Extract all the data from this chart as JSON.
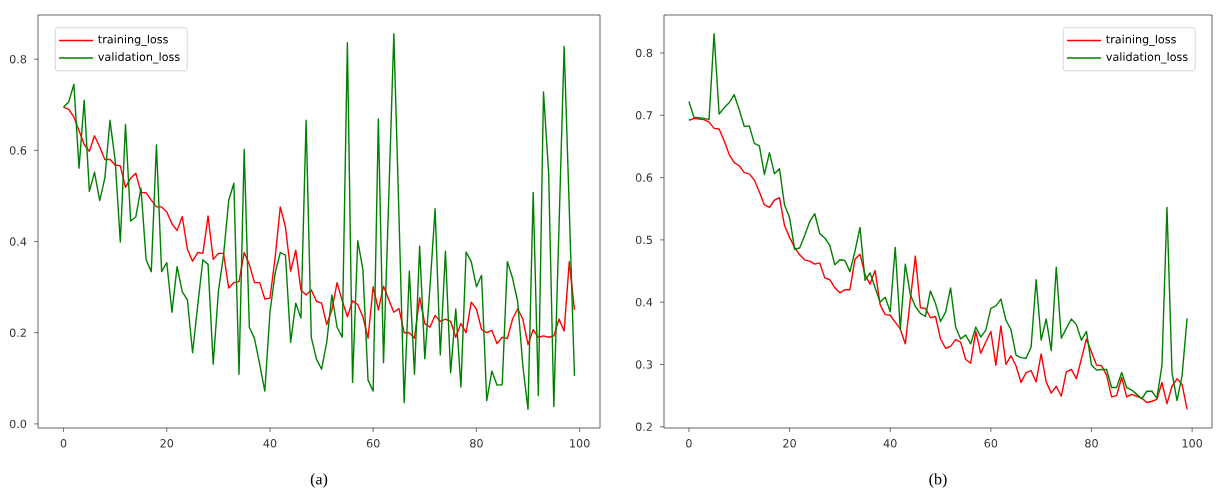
{
  "chart_data": [
    {
      "type": "line",
      "xlabel": "(a)",
      "legend": "top left",
      "xlim": [
        -4.95,
        103.95
      ],
      "ylim": [
        -0.009,
        0.897
      ],
      "xticks": [
        0,
        20,
        40,
        60,
        80,
        100
      ],
      "yticks": [
        {
          "value": 0,
          "label": "0.0"
        },
        {
          "value": 0.2,
          "label": "0.2"
        },
        {
          "value": 0.4,
          "label": "0.4"
        },
        {
          "value": 0.6,
          "label": "0.6"
        },
        {
          "value": 0.8,
          "label": "0.8"
        }
      ],
      "x": [
        0,
        1,
        2,
        3,
        4,
        5,
        6,
        7,
        8,
        9,
        10,
        11,
        12,
        13,
        14,
        15,
        16,
        17,
        18,
        19,
        20,
        21,
        22,
        23,
        24,
        25,
        26,
        27,
        28,
        29,
        30,
        31,
        32,
        33,
        34,
        35,
        36,
        37,
        38,
        39,
        40,
        41,
        42,
        43,
        44,
        45,
        46,
        47,
        48,
        49,
        50,
        51,
        52,
        53,
        54,
        55,
        56,
        57,
        58,
        59,
        60,
        61,
        62,
        63,
        64,
        65,
        66,
        67,
        68,
        69,
        70,
        71,
        72,
        73,
        74,
        75,
        76,
        77,
        78,
        79,
        80,
        81,
        82,
        83,
        84,
        85,
        86,
        87,
        88,
        89,
        90,
        91,
        92,
        93,
        94,
        95,
        96,
        97,
        98,
        99
      ],
      "series": [
        {
          "name": "training_loss",
          "color": "#ff0000",
          "values": [
            0.695,
            0.69,
            0.673,
            0.643,
            0.613,
            0.598,
            0.632,
            0.608,
            0.58,
            0.58,
            0.568,
            0.566,
            0.519,
            0.539,
            0.55,
            0.508,
            0.507,
            0.491,
            0.476,
            0.476,
            0.465,
            0.439,
            0.424,
            0.455,
            0.383,
            0.357,
            0.376,
            0.374,
            0.456,
            0.361,
            0.374,
            0.374,
            0.298,
            0.31,
            0.312,
            0.376,
            0.35,
            0.31,
            0.31,
            0.274,
            0.276,
            0.365,
            0.476,
            0.432,
            0.335,
            0.381,
            0.294,
            0.283,
            0.294,
            0.269,
            0.265,
            0.218,
            0.25,
            0.31,
            0.27,
            0.235,
            0.27,
            0.262,
            0.235,
            0.188,
            0.301,
            0.25,
            0.302,
            0.273,
            0.245,
            0.253,
            0.2,
            0.2,
            0.188,
            0.277,
            0.22,
            0.212,
            0.238,
            0.225,
            0.23,
            0.225,
            0.19,
            0.22,
            0.2,
            0.267,
            0.252,
            0.207,
            0.2,
            0.205,
            0.176,
            0.19,
            0.187,
            0.23,
            0.252,
            0.23,
            0.174,
            0.207,
            0.19,
            0.193,
            0.19,
            0.193,
            0.23,
            0.204,
            0.356,
            0.25
          ]
        },
        {
          "name": "validation_loss",
          "color": "#008000",
          "values": [
            0.695,
            0.706,
            0.745,
            0.561,
            0.71,
            0.51,
            0.552,
            0.49,
            0.539,
            0.666,
            0.577,
            0.399,
            0.657,
            0.445,
            0.454,
            0.517,
            0.36,
            0.334,
            0.612,
            0.334,
            0.354,
            0.245,
            0.345,
            0.29,
            0.272,
            0.156,
            0.26,
            0.36,
            0.35,
            0.131,
            0.29,
            0.37,
            0.49,
            0.528,
            0.109,
            0.602,
            0.212,
            0.187,
            0.131,
            0.072,
            0.245,
            0.331,
            0.376,
            0.37,
            0.179,
            0.265,
            0.232,
            0.666,
            0.19,
            0.142,
            0.12,
            0.179,
            0.283,
            0.212,
            0.19,
            0.836,
            0.091,
            0.402,
            0.339,
            0.096,
            0.072,
            0.669,
            0.134,
            0.49,
            0.856,
            0.454,
            0.047,
            0.335,
            0.109,
            0.39,
            0.143,
            0.3,
            0.472,
            0.151,
            0.379,
            0.112,
            0.252,
            0.081,
            0.377,
            0.356,
            0.301,
            0.326,
            0.051,
            0.116,
            0.085,
            0.086,
            0.356,
            0.32,
            0.268,
            0.127,
            0.032,
            0.508,
            0.062,
            0.728,
            0.55,
            0.038,
            0.43,
            0.828,
            0.47,
            0.105
          ]
        }
      ]
    },
    {
      "type": "line",
      "xlabel": "(b)",
      "legend": "top right",
      "xlim": [
        -4.95,
        103.95
      ],
      "ylim": [
        0.198,
        0.861
      ],
      "xticks": [
        0,
        20,
        40,
        60,
        80,
        100
      ],
      "yticks": [
        0.2,
        0.3,
        0.4,
        0.5,
        0.6,
        0.7,
        0.8
      ],
      "x": [
        0,
        1,
        2,
        3,
        4,
        5,
        6,
        7,
        8,
        9,
        10,
        11,
        12,
        13,
        14,
        15,
        16,
        17,
        18,
        19,
        20,
        21,
        22,
        23,
        24,
        25,
        26,
        27,
        28,
        29,
        30,
        31,
        32,
        33,
        34,
        35,
        36,
        37,
        38,
        39,
        40,
        41,
        42,
        43,
        44,
        45,
        46,
        47,
        48,
        49,
        50,
        51,
        52,
        53,
        54,
        55,
        56,
        57,
        58,
        59,
        60,
        61,
        62,
        63,
        64,
        65,
        66,
        67,
        68,
        69,
        70,
        71,
        72,
        73,
        74,
        75,
        76,
        77,
        78,
        79,
        80,
        81,
        82,
        83,
        84,
        85,
        86,
        87,
        88,
        89,
        90,
        91,
        92,
        93,
        94,
        95,
        96,
        97,
        98,
        99
      ],
      "series": [
        {
          "name": "training_loss",
          "color": "#ff0000",
          "values": [
            0.692,
            0.695,
            0.694,
            0.693,
            0.689,
            0.679,
            0.678,
            0.659,
            0.637,
            0.624,
            0.619,
            0.608,
            0.606,
            0.596,
            0.577,
            0.556,
            0.552,
            0.564,
            0.568,
            0.523,
            0.504,
            0.488,
            0.476,
            0.468,
            0.466,
            0.461,
            0.463,
            0.439,
            0.436,
            0.423,
            0.415,
            0.42,
            0.42,
            0.469,
            0.477,
            0.444,
            0.429,
            0.451,
            0.396,
            0.38,
            0.379,
            0.368,
            0.357,
            0.333,
            0.404,
            0.474,
            0.391,
            0.39,
            0.375,
            0.377,
            0.341,
            0.326,
            0.329,
            0.34,
            0.336,
            0.308,
            0.302,
            0.353,
            0.318,
            0.336,
            0.353,
            0.299,
            0.362,
            0.3,
            0.314,
            0.298,
            0.271,
            0.287,
            0.29,
            0.272,
            0.317,
            0.272,
            0.254,
            0.265,
            0.249,
            0.288,
            0.292,
            0.277,
            0.309,
            0.341,
            0.32,
            0.299,
            0.298,
            0.283,
            0.248,
            0.25,
            0.279,
            0.248,
            0.252,
            0.249,
            0.246,
            0.239,
            0.241,
            0.244,
            0.271,
            0.237,
            0.265,
            0.277,
            0.268,
            0.228
          ]
        },
        {
          "name": "validation_loss",
          "color": "#008000",
          "values": [
            0.722,
            0.697,
            0.696,
            0.695,
            0.693,
            0.831,
            0.702,
            0.712,
            0.72,
            0.733,
            0.709,
            0.682,
            0.683,
            0.655,
            0.651,
            0.605,
            0.64,
            0.606,
            0.614,
            0.556,
            0.536,
            0.485,
            0.487,
            0.507,
            0.529,
            0.542,
            0.51,
            0.503,
            0.491,
            0.46,
            0.468,
            0.467,
            0.449,
            0.482,
            0.52,
            0.435,
            0.447,
            0.423,
            0.4,
            0.408,
            0.385,
            0.488,
            0.357,
            0.461,
            0.412,
            0.393,
            0.382,
            0.377,
            0.418,
            0.398,
            0.369,
            0.384,
            0.423,
            0.36,
            0.341,
            0.347,
            0.333,
            0.36,
            0.344,
            0.355,
            0.39,
            0.394,
            0.405,
            0.371,
            0.356,
            0.315,
            0.311,
            0.31,
            0.328,
            0.436,
            0.339,
            0.373,
            0.322,
            0.456,
            0.342,
            0.358,
            0.373,
            0.364,
            0.339,
            0.353,
            0.299,
            0.291,
            0.292,
            0.292,
            0.263,
            0.263,
            0.287,
            0.263,
            0.259,
            0.252,
            0.245,
            0.257,
            0.257,
            0.246,
            0.298,
            0.552,
            0.287,
            0.242,
            0.282,
            0.374
          ]
        }
      ]
    }
  ]
}
